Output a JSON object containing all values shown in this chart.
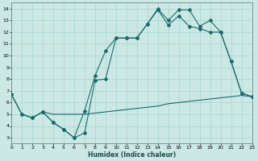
{
  "xlabel": "Humidex (Indice chaleur)",
  "xlim": [
    0,
    23
  ],
  "ylim": [
    2.5,
    14.5
  ],
  "xticks": [
    0,
    1,
    2,
    3,
    4,
    5,
    6,
    7,
    8,
    9,
    10,
    11,
    12,
    13,
    14,
    15,
    16,
    17,
    18,
    19,
    20,
    21,
    22,
    23
  ],
  "yticks": [
    3,
    4,
    5,
    6,
    7,
    8,
    9,
    10,
    11,
    12,
    13,
    14
  ],
  "bg_color": "#cce8e5",
  "grid_color": "#a8d4d0",
  "line_color": "#1a6b6b",
  "line1_x": [
    0,
    1,
    2,
    3,
    4,
    5,
    6,
    7,
    8,
    9,
    10,
    11,
    12,
    13,
    14,
    15,
    16,
    17,
    18,
    19,
    20,
    21,
    22,
    23
  ],
  "line1_y": [
    6.7,
    5.0,
    4.7,
    5.2,
    4.3,
    3.7,
    3.0,
    3.4,
    7.9,
    8.0,
    11.5,
    11.5,
    11.5,
    12.7,
    14.0,
    13.0,
    13.9,
    13.9,
    12.5,
    13.0,
    12.0,
    9.5,
    6.8,
    6.5
  ],
  "line2_x": [
    1,
    2,
    3,
    4,
    5,
    6,
    7,
    8,
    9,
    10,
    11,
    12,
    13,
    14,
    15,
    16,
    17,
    18,
    19,
    20,
    21,
    22,
    23
  ],
  "line2_y": [
    5.0,
    4.7,
    5.2,
    5.0,
    5.0,
    5.0,
    5.0,
    5.1,
    5.2,
    5.3,
    5.4,
    5.5,
    5.6,
    5.7,
    5.9,
    6.0,
    6.1,
    6.2,
    6.3,
    6.4,
    6.5,
    6.6,
    6.5
  ],
  "line3_x": [
    0,
    1,
    2,
    3,
    4,
    5,
    6,
    7,
    8,
    9,
    10,
    11,
    12,
    13,
    14,
    15,
    16,
    17,
    18,
    19,
    20,
    21,
    22,
    23
  ],
  "line3_y": [
    6.7,
    5.0,
    4.7,
    5.2,
    4.3,
    3.7,
    3.0,
    5.3,
    8.3,
    10.4,
    11.5,
    11.5,
    11.5,
    12.7,
    13.9,
    12.6,
    13.4,
    12.5,
    12.3,
    12.0,
    12.0,
    9.5,
    6.8,
    6.5
  ]
}
